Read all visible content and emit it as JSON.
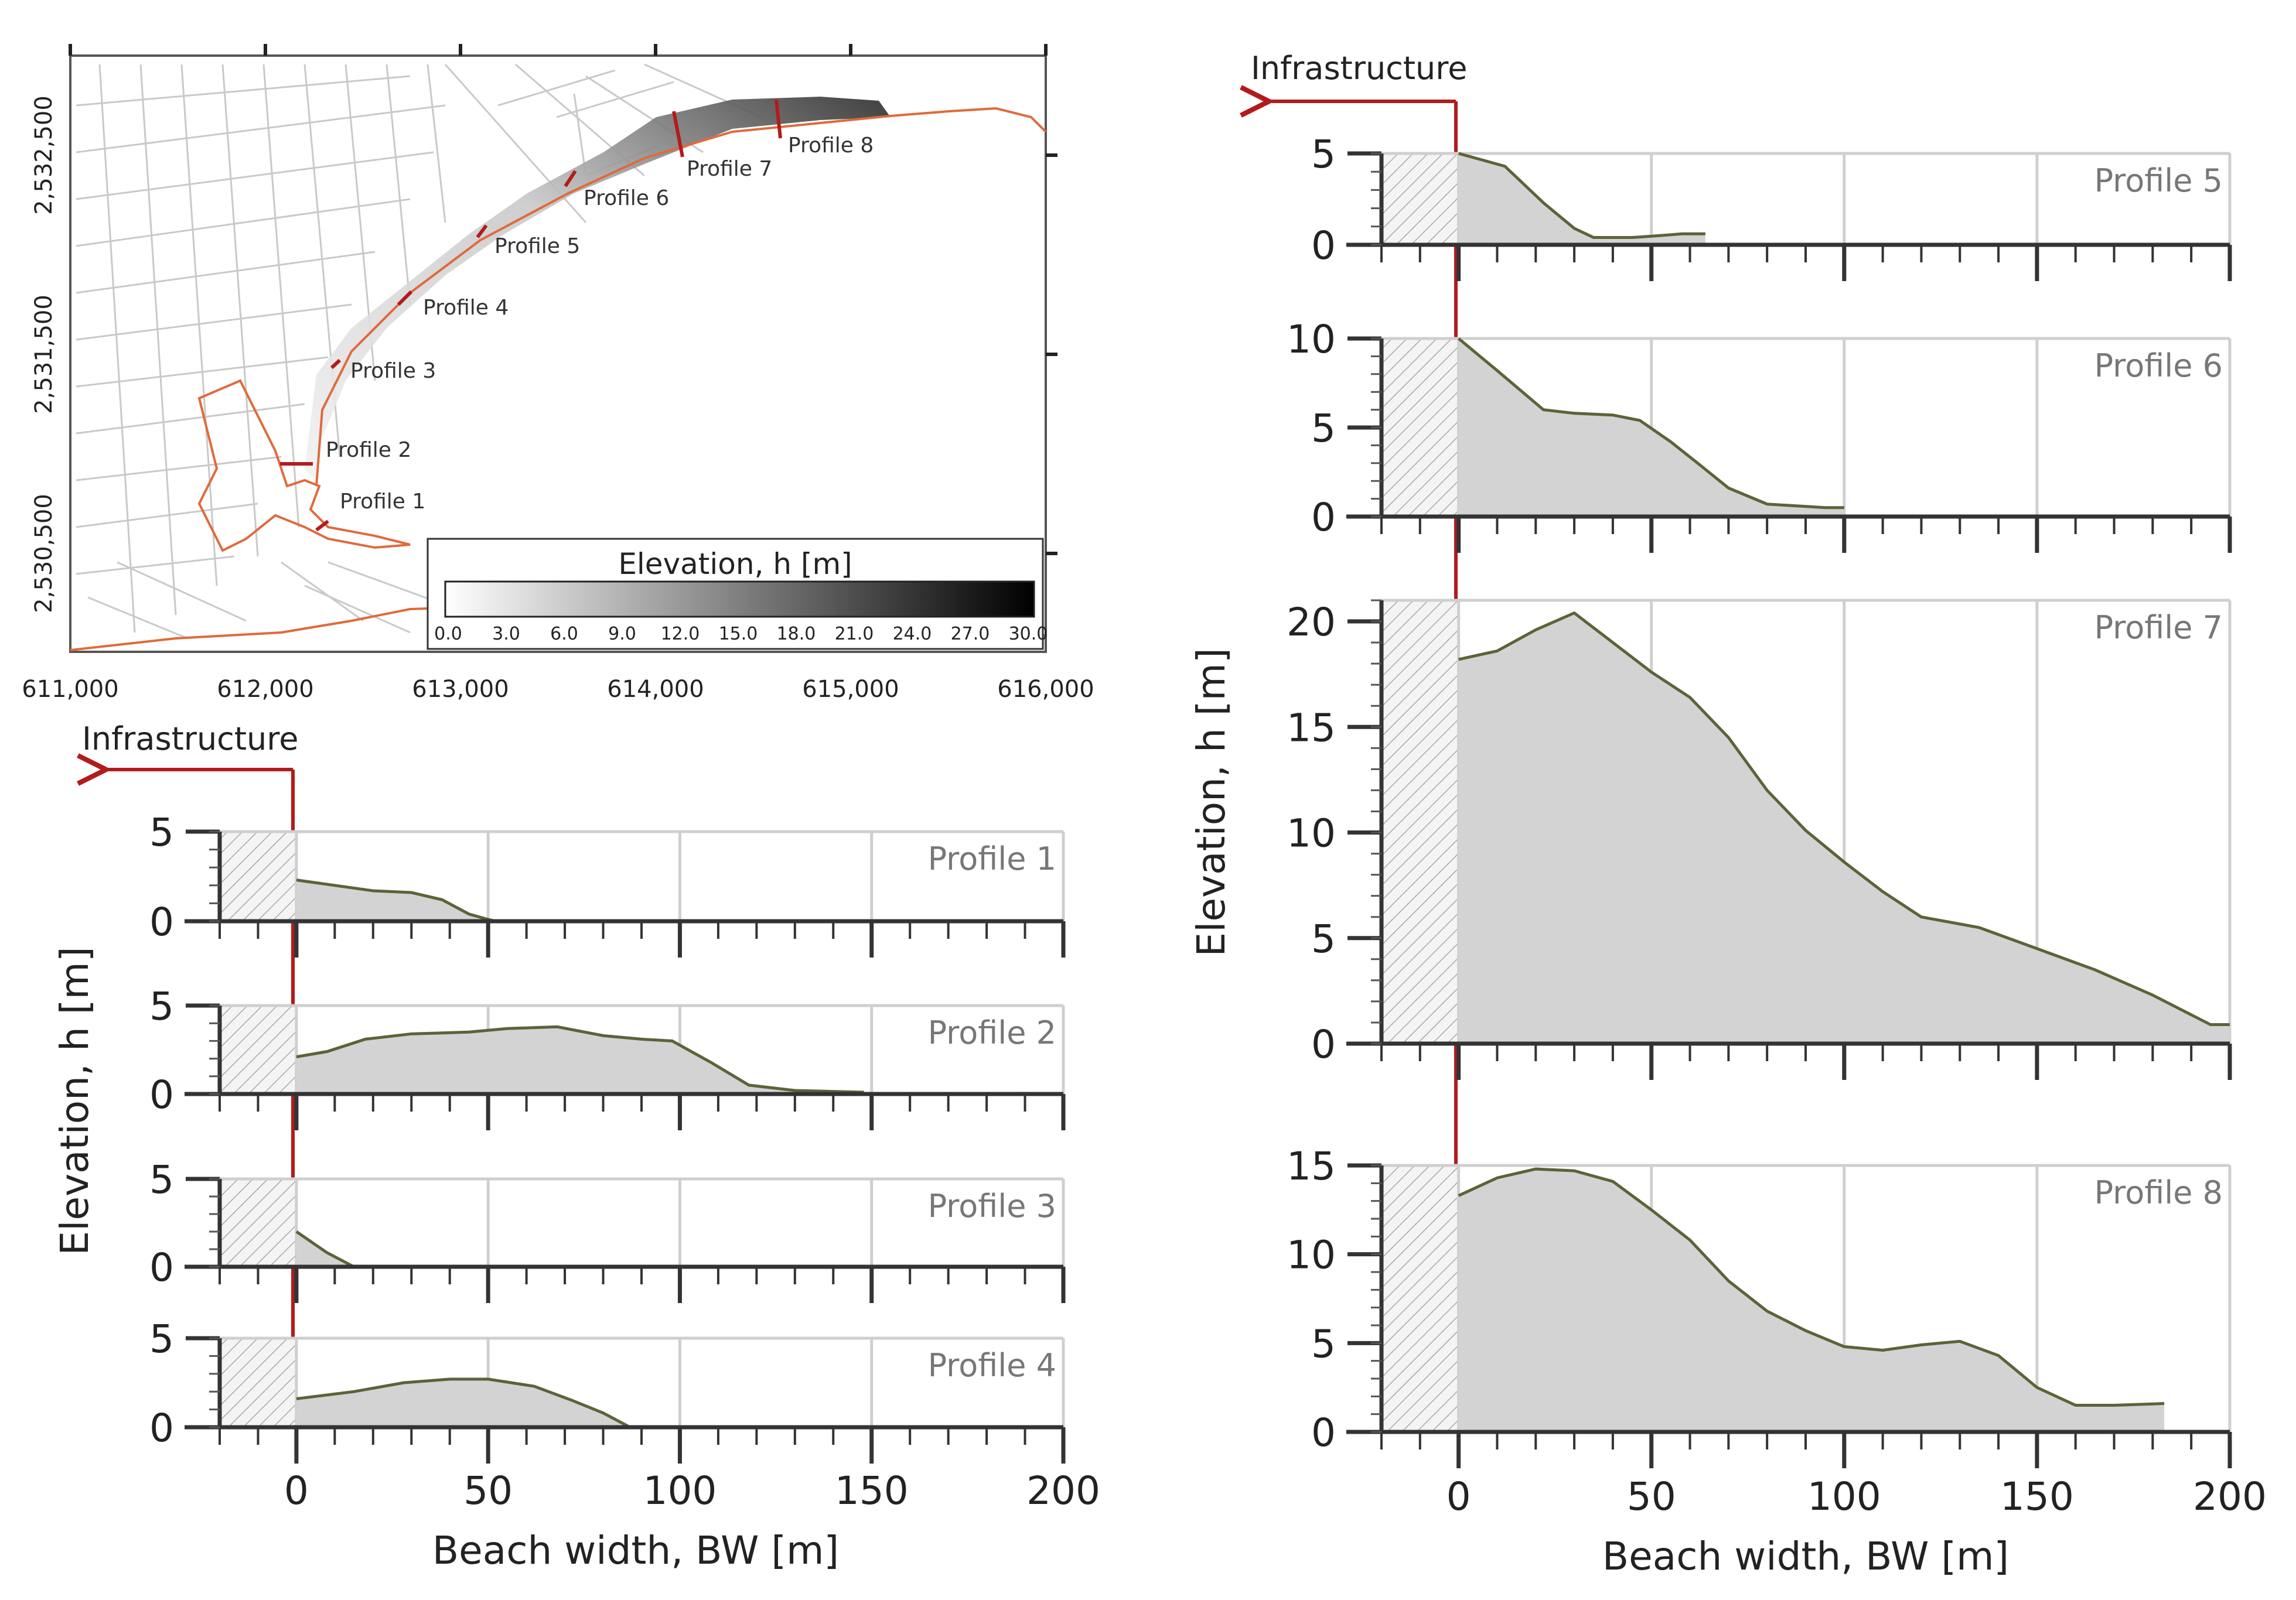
{
  "map": {
    "x_ticks": [
      "611,000",
      "612,000",
      "613,000",
      "614,000",
      "615,000",
      "616,000"
    ],
    "y_ticks": [
      "2,532,500",
      "2,531,500",
      "2,530,500"
    ],
    "profile_labels": [
      "Profile 1",
      "Profile 2",
      "Profile 3",
      "Profile 4",
      "Profile 5",
      "Profile 6",
      "Profile 7",
      "Profile 8"
    ],
    "colorbar": {
      "title": "Elevation, h [m]",
      "ticks": [
        "0.0",
        "3.0",
        "6.0",
        "9.0",
        "12.0",
        "15.0",
        "18.0",
        "21.0",
        "24.0",
        "27.0",
        "30.0"
      ]
    },
    "colors": {
      "shoreline": "#e06a3c",
      "profile_marker": "#b31b1b"
    }
  },
  "left_panel": {
    "infrastructure_label": "Infrastructure",
    "ylabel": "Elevation, h [m]",
    "xlabel": "Beach width, BW [m]",
    "x_ticks": [
      "0",
      "50",
      "100",
      "150",
      "200"
    ]
  },
  "right_panel": {
    "infrastructure_label": "Infrastructure",
    "ylabel": "Elevation, h [m]",
    "xlabel": "Beach width, BW [m]",
    "x_ticks": [
      "0",
      "50",
      "100",
      "150",
      "200"
    ]
  },
  "chart_data": [
    {
      "type": "area",
      "title": "Profile 1",
      "xlabel": "Beach width, BW [m]",
      "ylabel": "Elevation, h [m]",
      "xlim": [
        -20,
        200
      ],
      "ylim": [
        0,
        5
      ],
      "y_ticks": [
        "5",
        "0"
      ],
      "x": [
        0,
        10,
        20,
        30,
        38,
        45,
        50,
        52
      ],
      "y": [
        2.3,
        2.0,
        1.7,
        1.6,
        1.2,
        0.4,
        0.1,
        0
      ]
    },
    {
      "type": "area",
      "title": "Profile 2",
      "xlabel": "Beach width, BW [m]",
      "ylabel": "Elevation, h [m]",
      "xlim": [
        -20,
        200
      ],
      "ylim": [
        0,
        5
      ],
      "y_ticks": [
        "5",
        "0"
      ],
      "x": [
        0,
        8,
        18,
        30,
        45,
        55,
        68,
        80,
        90,
        98,
        108,
        118,
        130,
        148
      ],
      "y": [
        2.1,
        2.4,
        3.1,
        3.4,
        3.5,
        3.7,
        3.8,
        3.3,
        3.1,
        3.0,
        1.8,
        0.5,
        0.2,
        0.1
      ]
    },
    {
      "type": "area",
      "title": "Profile 3",
      "xlabel": "Beach width, BW [m]",
      "ylabel": "Elevation, h [m]",
      "xlim": [
        -20,
        200
      ],
      "ylim": [
        0,
        5
      ],
      "y_ticks": [
        "5",
        "0"
      ],
      "x": [
        0,
        8,
        15
      ],
      "y": [
        2.0,
        0.8,
        0
      ]
    },
    {
      "type": "area",
      "title": "Profile 4",
      "xlabel": "Beach width, BW [m]",
      "ylabel": "Elevation, h [m]",
      "xlim": [
        -20,
        200
      ],
      "ylim": [
        0,
        5
      ],
      "y_ticks": [
        "5",
        "0"
      ],
      "x": [
        0,
        15,
        28,
        40,
        50,
        62,
        72,
        80,
        87
      ],
      "y": [
        1.6,
        2.0,
        2.5,
        2.7,
        2.7,
        2.3,
        1.5,
        0.8,
        0
      ]
    },
    {
      "type": "area",
      "title": "Profile 5",
      "xlabel": "Beach width, BW [m]",
      "ylabel": "Elevation, h [m]",
      "xlim": [
        -20,
        200
      ],
      "ylim": [
        0,
        5
      ],
      "y_ticks": [
        "5",
        "0"
      ],
      "x": [
        0,
        12,
        22,
        30,
        35,
        45,
        52,
        58,
        64
      ],
      "y": [
        5.0,
        4.3,
        2.3,
        0.9,
        0.4,
        0.4,
        0.5,
        0.6,
        0.6
      ]
    },
    {
      "type": "area",
      "title": "Profile 6",
      "xlabel": "Beach width, BW [m]",
      "ylabel": "Elevation, h [m]",
      "xlim": [
        -20,
        200
      ],
      "ylim": [
        0,
        10
      ],
      "y_ticks": [
        "10",
        "5",
        "0"
      ],
      "x": [
        0,
        10,
        22,
        30,
        40,
        47,
        55,
        62,
        70,
        80,
        95,
        100
      ],
      "y": [
        10.0,
        8.2,
        6.0,
        5.8,
        5.7,
        5.4,
        4.2,
        3.0,
        1.6,
        0.7,
        0.5,
        0.5
      ]
    },
    {
      "type": "area",
      "title": "Profile 7",
      "xlabel": "Beach width, BW [m]",
      "ylabel": "Elevation, h [m]",
      "xlim": [
        -20,
        200
      ],
      "ylim": [
        0,
        21
      ],
      "y_ticks": [
        "20",
        "15",
        "10",
        "5",
        "0"
      ],
      "x": [
        0,
        10,
        20,
        30,
        40,
        50,
        60,
        70,
        80,
        90,
        100,
        110,
        120,
        135,
        150,
        165,
        180,
        195,
        200
      ],
      "y": [
        18.2,
        18.6,
        19.6,
        20.4,
        19.0,
        17.6,
        16.4,
        14.5,
        12.0,
        10.1,
        8.6,
        7.2,
        6.0,
        5.5,
        4.5,
        3.5,
        2.3,
        0.9,
        0.9
      ]
    },
    {
      "type": "area",
      "title": "Profile 8",
      "xlabel": "Beach width, BW [m]",
      "ylabel": "Elevation, h [m]",
      "xlim": [
        -20,
        200
      ],
      "ylim": [
        0,
        15
      ],
      "y_ticks": [
        "15",
        "10",
        "5",
        "0"
      ],
      "x": [
        0,
        10,
        20,
        30,
        40,
        50,
        60,
        70,
        80,
        90,
        100,
        110,
        120,
        130,
        140,
        150,
        160,
        170,
        183
      ],
      "y": [
        13.3,
        14.3,
        14.8,
        14.7,
        14.1,
        12.5,
        10.8,
        8.5,
        6.8,
        5.7,
        4.8,
        4.6,
        4.9,
        5.1,
        4.3,
        2.5,
        1.5,
        1.5,
        1.6
      ]
    }
  ]
}
